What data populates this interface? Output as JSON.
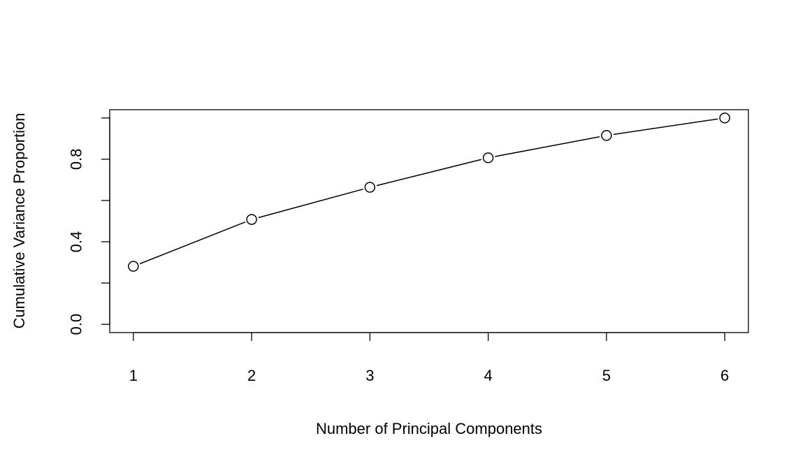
{
  "chart_data": {
    "type": "line",
    "title": "",
    "xlabel": "Number of Principal Components",
    "ylabel": "Cumulative Variance Proportion",
    "x": [
      1,
      2,
      3,
      4,
      5,
      6
    ],
    "values": [
      0.281,
      0.508,
      0.664,
      0.807,
      0.915,
      1.0
    ],
    "xlim": [
      1,
      6
    ],
    "ylim": [
      0,
      1
    ],
    "xticks": [
      "1",
      "2",
      "3",
      "4",
      "5",
      "6"
    ],
    "yticks": [
      0.0,
      0.2,
      0.4,
      0.6,
      0.8,
      1.0
    ],
    "ytick_labels": [
      "0.0",
      "",
      "0.4",
      "",
      "0.8",
      ""
    ],
    "markers": "open-circle",
    "grid": false,
    "legend": "none",
    "line_color": "#000000"
  }
}
